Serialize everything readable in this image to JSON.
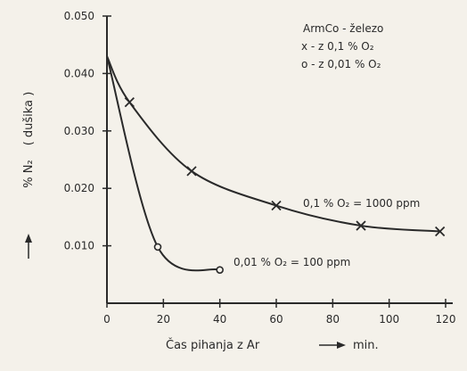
{
  "chart_data": {
    "type": "line",
    "title": "",
    "xlabel": "Čas pihanja z Ar",
    "xunit": "min.",
    "ylabel_symbol": "% N₂",
    "ylabel_note": "( dušika )",
    "xlim": [
      0,
      120
    ],
    "ylim": [
      0,
      0.05
    ],
    "x_ticks": [
      0,
      20,
      40,
      60,
      80,
      100,
      120
    ],
    "x_tick_labels": [
      "0",
      "20",
      "40",
      "60",
      "80",
      "100",
      "120"
    ],
    "y_ticks": [
      0.01,
      0.02,
      0.03,
      0.04,
      0.05
    ],
    "y_tick_labels": [
      "0.010",
      "0.020",
      "0.030",
      "0.040",
      "0.050"
    ],
    "grid": false,
    "legend": {
      "position": "top-right",
      "title": "ArmCo - železo",
      "entries": [
        "x - z 0,1 % O₂",
        "o - z 0,01 % O₂"
      ]
    },
    "series": [
      {
        "marker": "x",
        "annotation": "0,1 % O₂ = 1000 ppm",
        "x": [
          0,
          8,
          30,
          60,
          90,
          118
        ],
        "y": [
          0.043,
          0.035,
          0.023,
          0.017,
          0.0135,
          0.0125
        ]
      },
      {
        "marker": "o",
        "annotation": "0,01 % O₂ = 100 ppm",
        "x": [
          0,
          18,
          40
        ],
        "y": [
          0.043,
          0.0098,
          0.0058
        ]
      }
    ]
  }
}
